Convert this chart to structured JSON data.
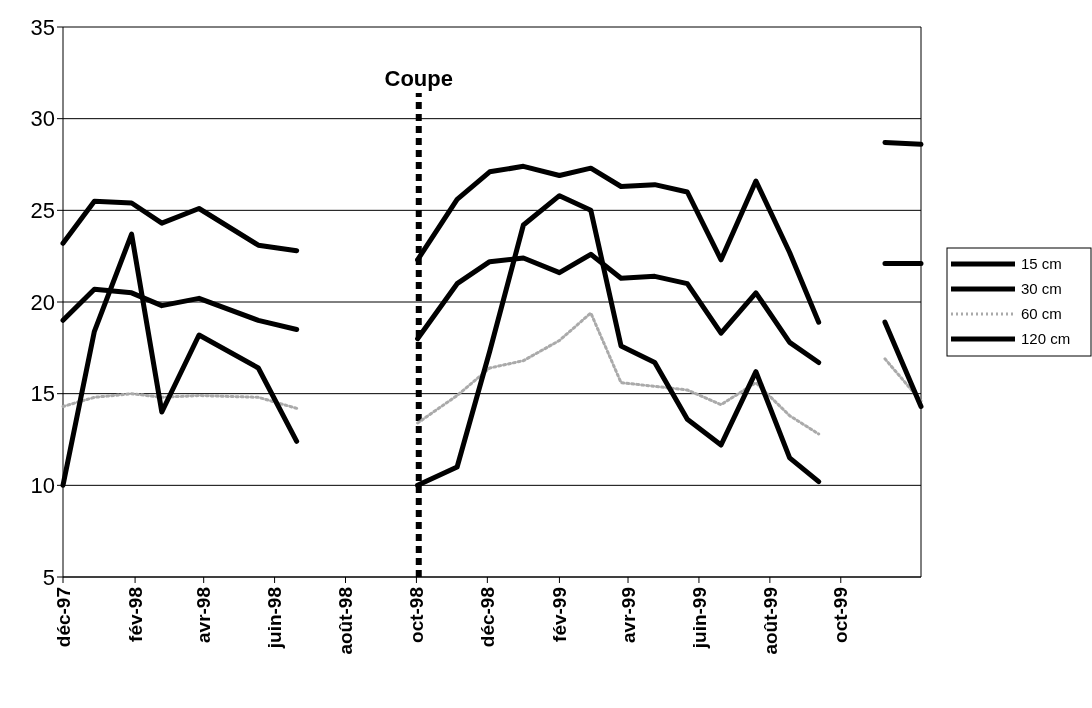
{
  "chart_data": {
    "type": "line",
    "x": [
      "1997-12-01",
      "1997-12-28",
      "1998-01-29",
      "1998-02-24",
      "1998-03-28",
      "1998-05-18",
      "1998-06-20",
      "1998-08-15",
      "1998-10-02",
      "1998-11-05",
      "1998-12-03",
      "1999-01-01",
      "1999-02-01",
      "1999-02-28",
      "1999-03-26",
      "1999-04-24",
      "1999-05-22",
      "1999-06-20",
      "1999-07-20",
      "1999-08-18",
      "1999-09-12",
      "1999-10-15",
      "1999-11-08",
      "1999-12-09"
    ],
    "series": [
      {
        "name": "15 cm",
        "color": "#000000",
        "values": [
          23.2,
          25.5,
          25.4,
          24.3,
          25.1,
          23.1,
          22.8,
          null,
          22.3,
          25.6,
          27.1,
          27.4,
          26.9,
          27.3,
          26.3,
          26.4,
          26.0,
          22.3,
          26.6,
          22.7,
          18.9,
          null,
          28.7,
          28.6
        ]
      },
      {
        "name": "30 cm",
        "color": "#000000",
        "values": [
          19.0,
          20.7,
          20.5,
          19.8,
          20.2,
          19.0,
          18.5,
          null,
          18.0,
          21.0,
          22.2,
          22.4,
          21.6,
          22.6,
          21.3,
          21.4,
          21.0,
          18.3,
          20.5,
          17.8,
          16.7,
          null,
          22.1,
          22.1
        ]
      },
      {
        "name": "60 cm",
        "color": "#aaaaaa",
        "line_style": "dotted",
        "values": [
          14.3,
          14.8,
          15.0,
          14.8,
          14.9,
          14.8,
          14.2,
          null,
          13.4,
          14.9,
          16.4,
          16.8,
          17.9,
          19.4,
          15.6,
          15.4,
          15.2,
          14.4,
          15.6,
          13.8,
          12.8,
          null,
          16.9,
          14.6
        ]
      },
      {
        "name": "120 cm",
        "color": "#000000",
        "values": [
          10.0,
          18.4,
          23.7,
          14.0,
          18.2,
          16.4,
          12.4,
          null,
          10.0,
          11.0,
          17.3,
          24.2,
          25.8,
          25.0,
          17.6,
          16.7,
          13.6,
          12.2,
          16.2,
          11.5,
          10.2,
          null,
          18.9,
          14.3
        ]
      }
    ],
    "xlim": [
      "1997-12-01",
      "1999-12-09"
    ],
    "xticks": [
      {
        "value": "1997-12-01",
        "label": "déc-97"
      },
      {
        "value": "1998-02-01",
        "label": "fév-98"
      },
      {
        "value": "1998-04-01",
        "label": "avr-98"
      },
      {
        "value": "1998-06-01",
        "label": "juin-98"
      },
      {
        "value": "1998-08-01",
        "label": "août-98"
      },
      {
        "value": "1998-10-01",
        "label": "oct-98"
      },
      {
        "value": "1998-12-01",
        "label": "déc-98"
      },
      {
        "value": "1999-02-01",
        "label": "fév-99"
      },
      {
        "value": "1999-04-01",
        "label": "avr-99"
      },
      {
        "value": "1999-06-01",
        "label": "juin-99"
      },
      {
        "value": "1999-08-01",
        "label": "août-99"
      },
      {
        "value": "1999-10-01",
        "label": "oct-99"
      }
    ],
    "ylim": [
      5,
      35
    ],
    "yticks": [
      5,
      10,
      15,
      20,
      25,
      30,
      35
    ],
    "grid": "y",
    "legend": "right",
    "line_style": "solid",
    "marker": "none",
    "ref_lines": [
      {
        "axis": "x",
        "value": "1998-10-03",
        "label": "Coupe",
        "color": "#000000",
        "line_style": "dotted"
      }
    ]
  }
}
